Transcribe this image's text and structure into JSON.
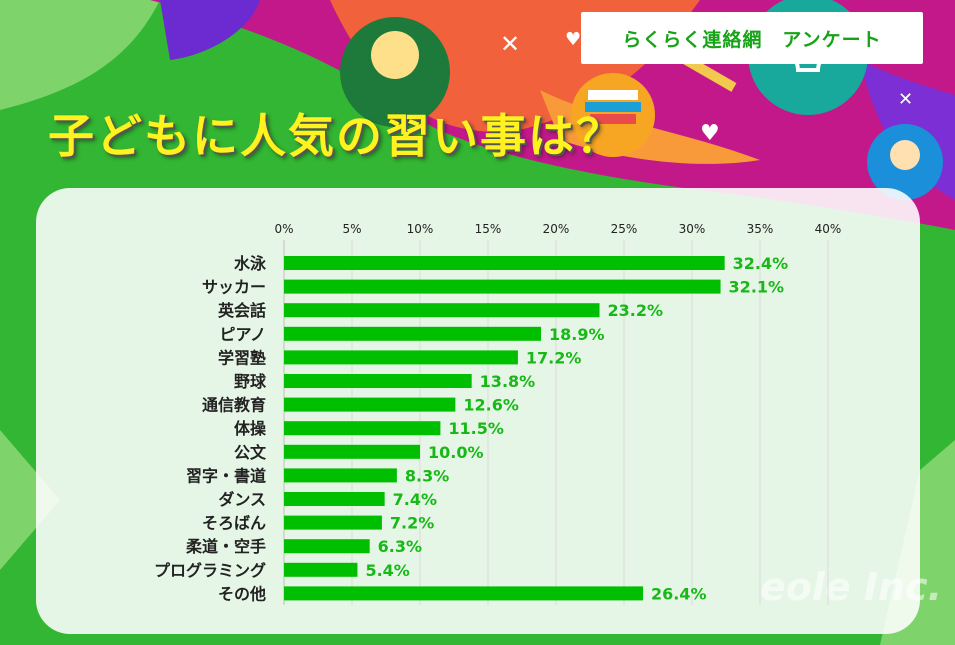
{
  "header": {
    "badge_label": "らくらく連絡網　アンケート",
    "headline": "子どもに人気の習い事は？"
  },
  "colors": {
    "bar": "#00bf00",
    "label": "#17b817",
    "grid": "#d9d9d9",
    "headline": "#fff21e"
  },
  "chart_data": {
    "type": "bar",
    "orientation": "horizontal",
    "categories": [
      "水泳",
      "サッカー",
      "英会話",
      "ピアノ",
      "学習塾",
      "野球",
      "通信教育",
      "体操",
      "公文",
      "習字・書道",
      "ダンス",
      "そろばん",
      "柔道・空手",
      "プログラミング",
      "その他"
    ],
    "values": [
      32.4,
      32.1,
      23.2,
      18.9,
      17.2,
      13.8,
      12.6,
      11.5,
      10.0,
      8.3,
      7.4,
      7.2,
      6.3,
      5.4,
      26.4
    ],
    "value_labels": [
      "32.4%",
      "32.1%",
      "23.2%",
      "18.9%",
      "17.2%",
      "13.8%",
      "12.6%",
      "11.5%",
      "10.0%",
      "8.3%",
      "7.4%",
      "7.2%",
      "6.3%",
      "5.4%",
      "26.4%"
    ],
    "ticks": [
      0,
      5,
      10,
      15,
      20,
      25,
      30,
      35,
      40
    ],
    "tick_labels": [
      "0%",
      "5%",
      "10%",
      "15%",
      "20%",
      "25%",
      "30%",
      "35%",
      "40%"
    ],
    "xlim": [
      0,
      40
    ],
    "axis_position": "top",
    "grid": true
  }
}
